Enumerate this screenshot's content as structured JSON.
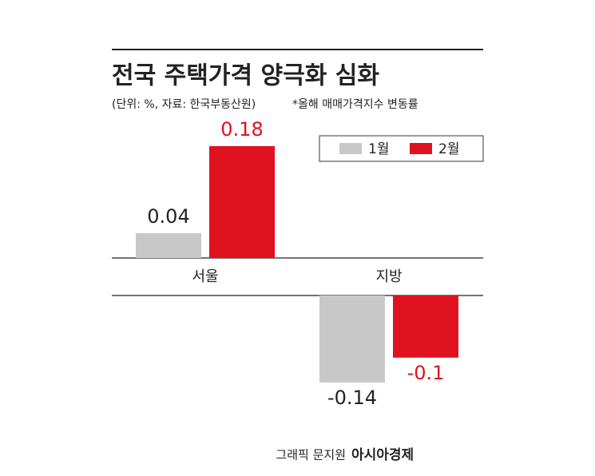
{
  "chart_data": {
    "type": "bar",
    "title": "전국 주택가격 양극화 심화",
    "subtitle": "(단위: %, 자료: 한국부동산원)",
    "note": "*올해 매매가격지수 변동률",
    "categories": [
      "서울",
      "지방"
    ],
    "series": [
      {
        "name": "1월",
        "color": "#c8c8c8",
        "label_color": "#222222",
        "values": [
          0.04,
          -0.14
        ]
      },
      {
        "name": "2월",
        "color": "#e0121f",
        "label_color": "#e0121f",
        "values": [
          0.18,
          -0.1
        ]
      }
    ],
    "credit": "그래픽 문지원",
    "brand": "아시아경제"
  }
}
